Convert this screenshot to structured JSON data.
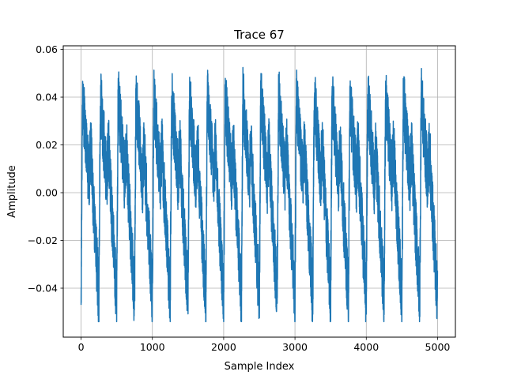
{
  "chart_data": {
    "type": "line",
    "title": "Trace 67",
    "xlabel": "Sample Index",
    "ylabel": "Amplitude",
    "xlim": [
      -250,
      5250
    ],
    "ylim": [
      -0.0605,
      0.0615
    ],
    "grid": true,
    "x_ticks": [
      0,
      1000,
      2000,
      3000,
      4000,
      5000
    ],
    "x_tick_labels": [
      "0",
      "1000",
      "2000",
      "3000",
      "4000",
      "5000"
    ],
    "y_ticks": [
      -0.04,
      -0.02,
      0.0,
      0.02,
      0.04,
      0.06
    ],
    "y_tick_labels": [
      "−0.04",
      "−0.02",
      "0.00",
      "0.02",
      "0.04",
      "0.06"
    ],
    "series": [
      {
        "color": "#1f77b4",
        "description_values": {
          "n_samples": 5000,
          "period_samples": 250,
          "mean": 0.0,
          "min": -0.054,
          "max": 0.056
        }
      }
    ]
  }
}
